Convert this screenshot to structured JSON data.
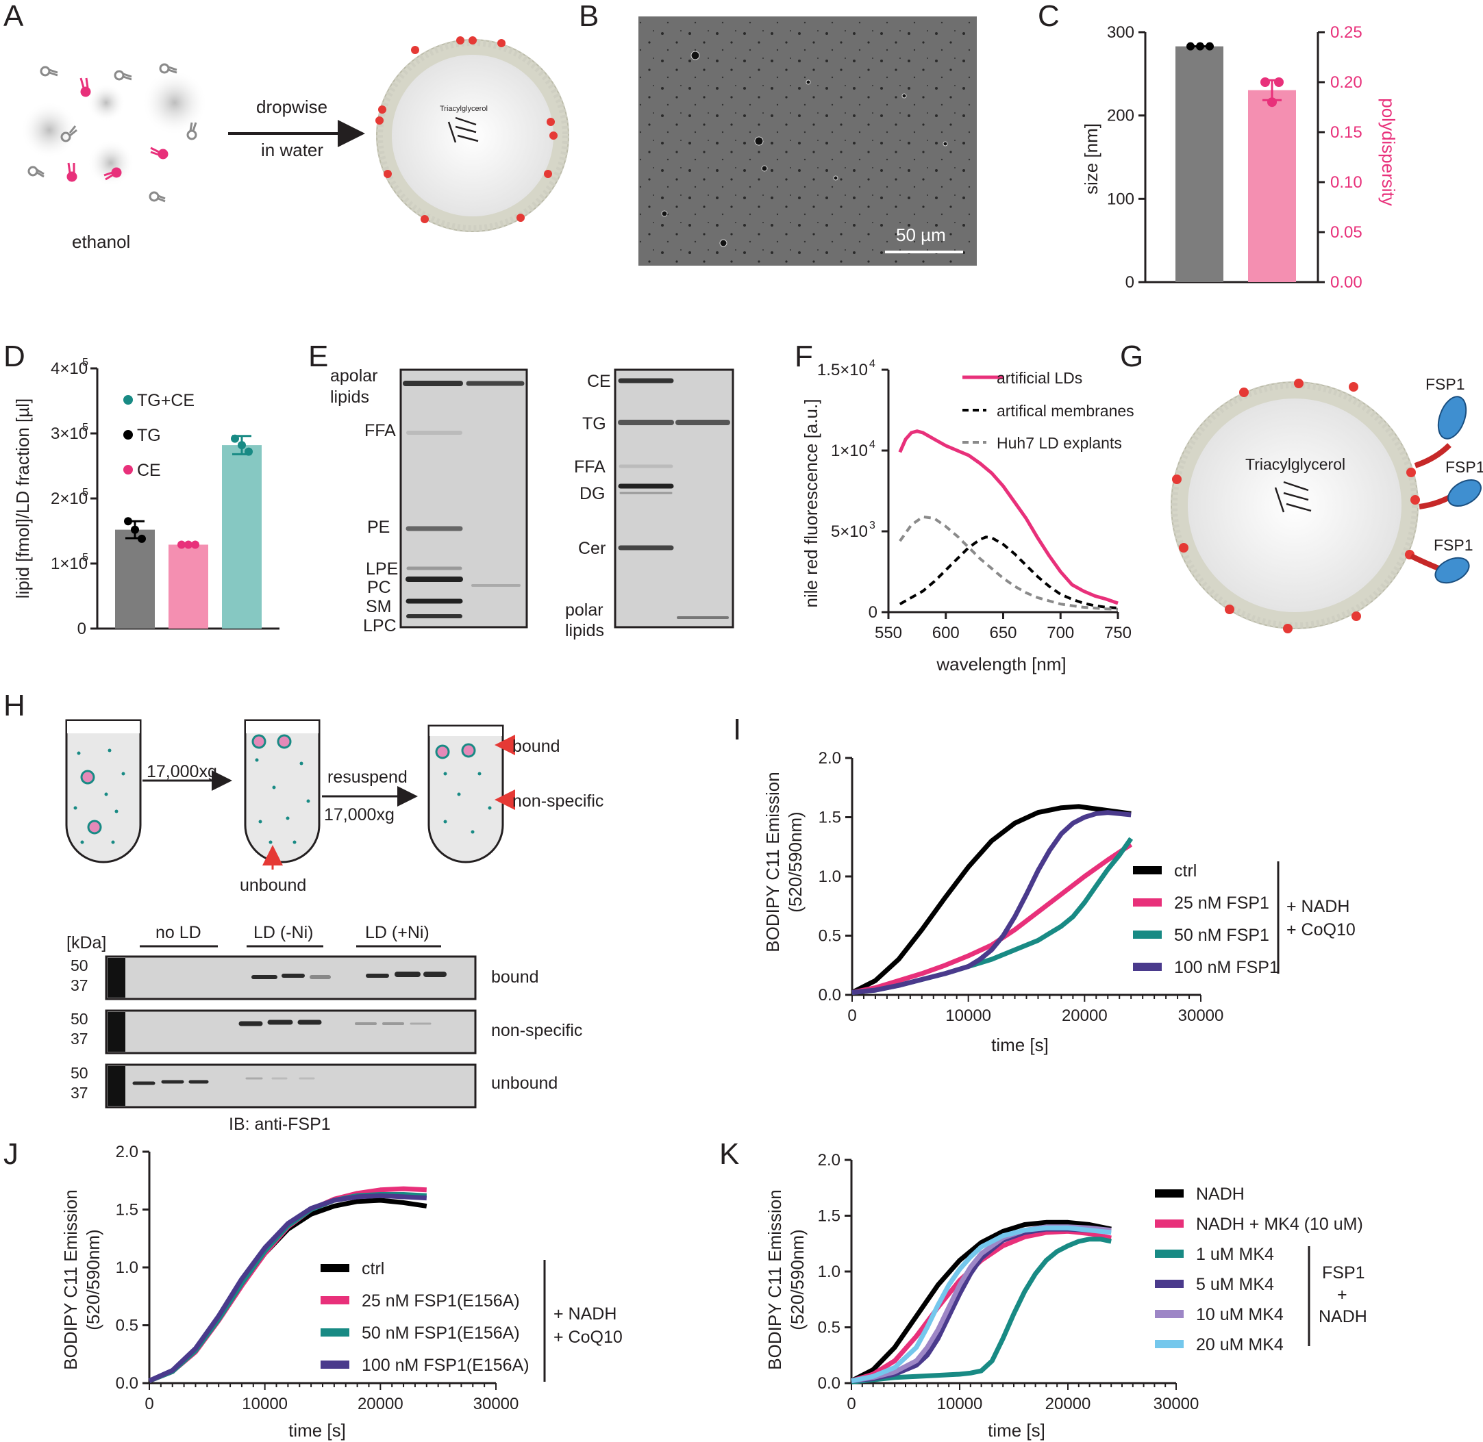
{
  "panels": [
    "A",
    "B",
    "C",
    "D",
    "E",
    "F",
    "G",
    "H",
    "I",
    "J",
    "K"
  ],
  "colors": {
    "pink": "#e8307a",
    "pink_bar": "#f48fb1",
    "gray_bar": "#7d7d7d",
    "teal": "#188a84",
    "teal_bar": "#86c8c2",
    "black": "#000000",
    "purple": "#4a3a8c",
    "lavender": "#9d86c6",
    "skyblue": "#74c7ec",
    "dashgray": "#8a8a8a",
    "ld_fill": "#f2f2f2",
    "headgroup": "#cfcfc2",
    "red": "#e53935",
    "fsp1_blue": "#3f8fd0"
  },
  "A": {
    "label_ethanol": "ethanol",
    "arrow_top": "dropwise",
    "arrow_bottom": "in water",
    "core_text": "Triacylglycerol"
  },
  "B": {
    "scale_bar": "50 µm"
  },
  "C": {
    "chart_data": {
      "type": "bar",
      "categories": [
        "size",
        "polydispersity"
      ],
      "series": [
        {
          "name": "size [nm]",
          "axis": "left",
          "value": 283,
          "points": [
            283,
            283,
            283
          ],
          "color": "#7d7d7d"
        },
        {
          "name": "polydispersity",
          "axis": "right",
          "value": 0.192,
          "points": [
            0.2,
            0.18,
            0.2
          ],
          "error": 0.01,
          "color": "#f48fb1"
        }
      ],
      "ylabel_left": "size [nm]",
      "ylabel_right": "polydispersity",
      "ylim_left": [
        0,
        300
      ],
      "ylim_right": [
        0,
        0.25
      ],
      "yticks_left": [
        "0",
        "100",
        "200",
        "300"
      ],
      "yticks_right": [
        "0.00",
        "0.05",
        "0.10",
        "0.15",
        "0.20",
        "0.25"
      ]
    }
  },
  "D": {
    "chart_data": {
      "type": "bar",
      "categories": [
        "TG",
        "CE",
        "TG+CE"
      ],
      "values": [
        152000,
        129000,
        282000
      ],
      "errors": [
        13000,
        1500,
        14000
      ],
      "points": [
        [
          165000,
          152000,
          138000
        ],
        [
          129000,
          129000,
          129000
        ],
        [
          292000,
          282000,
          272000
        ]
      ],
      "ylabel": "lipid [fmol]/LD fraction [µl]",
      "ylim": [
        0,
        400000
      ],
      "yticks": [
        "0",
        "1×10",
        "2×10",
        "3×10",
        "4×10"
      ],
      "ytick_exp": "5",
      "legend": [
        "TG+CE",
        "TG",
        "CE"
      ],
      "legend_colors": [
        "#188a84",
        "#000000",
        "#e8307a"
      ],
      "bar_colors": [
        "#7d7d7d",
        "#f48fb1",
        "#86c8c2"
      ]
    }
  },
  "E": {
    "left_labels": [
      "apolar",
      "lipids",
      "FFA",
      "PE",
      "LPE",
      "PC",
      "SM",
      "LPC"
    ],
    "right_labels": [
      "CE",
      "TG",
      "FFA",
      "DG",
      "Cer",
      "polar",
      "lipids"
    ]
  },
  "F": {
    "chart_data": {
      "type": "line",
      "xlabel": "wavelength [nm]",
      "ylabel": "nile red fluorescence [a.u.]",
      "xlim": [
        550,
        750
      ],
      "ylim": [
        0,
        15000
      ],
      "xticks": [
        "550",
        "600",
        "650",
        "700",
        "750"
      ],
      "yticks": [
        "0",
        "5×10",
        "1×10",
        "1.5×10"
      ],
      "ytick_exps": [
        "",
        "3",
        "4",
        "4"
      ],
      "series": [
        {
          "name": "artificial LDs",
          "style": "solid",
          "color": "#e8307a",
          "x": [
            560,
            565,
            570,
            575,
            580,
            590,
            600,
            610,
            620,
            630,
            640,
            650,
            660,
            670,
            680,
            690,
            700,
            710,
            720,
            730,
            740,
            750
          ],
          "y": [
            9900,
            10700,
            11100,
            11200,
            11100,
            10700,
            10300,
            10000,
            9700,
            9200,
            8600,
            7800,
            6800,
            5800,
            4600,
            3500,
            2500,
            1700,
            1300,
            1000,
            800,
            550
          ]
        },
        {
          "name": "artifical membranes",
          "style": "dashed",
          "color": "#000000",
          "x": [
            560,
            570,
            580,
            590,
            600,
            610,
            620,
            630,
            635,
            640,
            650,
            660,
            670,
            680,
            690,
            700,
            710,
            720,
            730,
            740,
            750
          ],
          "y": [
            500,
            900,
            1300,
            1900,
            2600,
            3300,
            4000,
            4500,
            4650,
            4600,
            4200,
            3600,
            2900,
            2200,
            1600,
            1100,
            800,
            550,
            400,
            300,
            250
          ]
        },
        {
          "name": "Huh7 LD explants",
          "style": "dashed",
          "color": "#8a8a8a",
          "x": [
            560,
            570,
            580,
            590,
            600,
            610,
            620,
            630,
            640,
            650,
            660,
            670,
            680,
            690,
            700,
            710,
            720,
            730,
            740,
            750
          ],
          "y": [
            4400,
            5400,
            5900,
            5800,
            5300,
            4700,
            4000,
            3300,
            2700,
            2100,
            1600,
            1200,
            900,
            700,
            500,
            400,
            300,
            250,
            200,
            180
          ]
        }
      ]
    }
  },
  "G": {
    "core_text": "Triacylglycerol",
    "fsp1_label": "FSP1"
  },
  "H": {
    "step1": "17,000xg",
    "step2a": "resuspend",
    "step2b": "17,000xg",
    "unbound_arrow": "unbound",
    "bound_arrow": "bound",
    "nonspecific_arrow": "non-specific",
    "kda": "[kDa]",
    "groups": [
      "no LD",
      "LD (-Ni)",
      "LD (+Ni)"
    ],
    "marker_50": "50",
    "marker_37": "37",
    "blots": [
      "bound",
      "non-specific",
      "unbound"
    ],
    "ib": "IB: anti-FSP1"
  },
  "I": {
    "chart_data": {
      "type": "line",
      "xlabel": "time [s]",
      "ylabel": "BODIPY C11 Emission",
      "ylabel2": "(520/590nm)",
      "xlim": [
        0,
        30000
      ],
      "ylim": [
        0,
        2.0
      ],
      "xticks": [
        "0",
        "10000",
        "20000",
        "30000"
      ],
      "yticks": [
        "0.0",
        "0.5",
        "1.0",
        "1.5",
        "2.0"
      ],
      "bracket_text": [
        "+ NADH",
        "+ CoQ10"
      ],
      "series": [
        {
          "name": "ctrl",
          "color": "#000000",
          "x": [
            0,
            2000,
            4000,
            6000,
            8000,
            10000,
            12000,
            14000,
            16000,
            18000,
            19500,
            21000,
            22500,
            24000
          ],
          "y": [
            0.02,
            0.12,
            0.3,
            0.55,
            0.82,
            1.08,
            1.3,
            1.45,
            1.54,
            1.58,
            1.59,
            1.57,
            1.55,
            1.53
          ]
        },
        {
          "name": "25 nM FSP1",
          "color": "#e8307a",
          "x": [
            0,
            2000,
            4000,
            6000,
            8000,
            10000,
            12000,
            14000,
            16000,
            18000,
            20000,
            22000,
            24000
          ],
          "y": [
            0.02,
            0.06,
            0.12,
            0.18,
            0.25,
            0.33,
            0.42,
            0.55,
            0.7,
            0.85,
            1.0,
            1.14,
            1.27
          ]
        },
        {
          "name": "50 nM FSP1",
          "color": "#188a84",
          "x": [
            0,
            2000,
            4000,
            6000,
            8000,
            10000,
            12000,
            14000,
            16000,
            17000,
            18000,
            19000,
            20000,
            21000,
            22000,
            23000,
            24000
          ],
          "y": [
            0.02,
            0.04,
            0.08,
            0.13,
            0.18,
            0.24,
            0.3,
            0.38,
            0.46,
            0.52,
            0.58,
            0.66,
            0.78,
            0.92,
            1.06,
            1.18,
            1.32
          ]
        },
        {
          "name": "100 nM FSP1",
          "color": "#4a3a8c",
          "x": [
            0,
            2000,
            4000,
            6000,
            8000,
            10000,
            11000,
            12000,
            13000,
            14000,
            15000,
            16000,
            17000,
            18000,
            19000,
            20000,
            21000,
            22000,
            23000,
            24000
          ],
          "y": [
            0.02,
            0.04,
            0.08,
            0.13,
            0.18,
            0.24,
            0.3,
            0.38,
            0.5,
            0.66,
            0.85,
            1.05,
            1.22,
            1.36,
            1.45,
            1.5,
            1.53,
            1.54,
            1.53,
            1.52
          ]
        }
      ]
    }
  },
  "J": {
    "chart_data": {
      "type": "line",
      "xlabel": "time [s]",
      "ylabel": "BODIPY C11 Emission",
      "ylabel2": "(520/590nm)",
      "xlim": [
        0,
        30000
      ],
      "ylim": [
        0,
        2.0
      ],
      "xticks": [
        "0",
        "10000",
        "20000",
        "30000"
      ],
      "yticks": [
        "0.0",
        "0.5",
        "1.0",
        "1.5",
        "2.0"
      ],
      "bracket_text": [
        "+ NADH",
        "+ CoQ10"
      ],
      "series": [
        {
          "name": "ctrl",
          "color": "#000000",
          "x": [
            0,
            2000,
            4000,
            6000,
            8000,
            10000,
            12000,
            14000,
            16000,
            18000,
            20000,
            22000,
            24000
          ],
          "y": [
            0.02,
            0.1,
            0.28,
            0.55,
            0.85,
            1.12,
            1.33,
            1.46,
            1.53,
            1.57,
            1.58,
            1.56,
            1.53
          ]
        },
        {
          "name": "25 nM FSP1(E156A)",
          "color": "#e8307a",
          "x": [
            0,
            2000,
            4000,
            6000,
            8000,
            10000,
            12000,
            14000,
            16000,
            18000,
            20000,
            22000,
            24000
          ],
          "y": [
            0.02,
            0.1,
            0.27,
            0.54,
            0.84,
            1.12,
            1.35,
            1.5,
            1.59,
            1.64,
            1.67,
            1.68,
            1.67
          ]
        },
        {
          "name": "50 nM FSP1(E156A)",
          "color": "#188a84",
          "x": [
            0,
            2000,
            4000,
            6000,
            8000,
            10000,
            12000,
            14000,
            16000,
            18000,
            20000,
            22000,
            24000
          ],
          "y": [
            0.02,
            0.1,
            0.28,
            0.55,
            0.86,
            1.14,
            1.36,
            1.5,
            1.58,
            1.62,
            1.63,
            1.63,
            1.62
          ]
        },
        {
          "name": "100 nM FSP1(E156A)",
          "color": "#4a3a8c",
          "x": [
            0,
            2000,
            4000,
            6000,
            8000,
            10000,
            12000,
            14000,
            16000,
            18000,
            20000,
            22000,
            24000
          ],
          "y": [
            0.02,
            0.11,
            0.3,
            0.58,
            0.9,
            1.17,
            1.38,
            1.51,
            1.58,
            1.61,
            1.62,
            1.61,
            1.6
          ]
        }
      ]
    }
  },
  "K": {
    "chart_data": {
      "type": "line",
      "xlabel": "time [s]",
      "ylabel": "BODIPY C11 Emission",
      "ylabel2": "(520/590nm)",
      "xlim": [
        0,
        30000
      ],
      "ylim": [
        0,
        2.0
      ],
      "xticks": [
        "0",
        "10000",
        "20000",
        "30000"
      ],
      "yticks": [
        "0.0",
        "0.5",
        "1.0",
        "1.5",
        "2.0"
      ],
      "bracket_text": [
        "FSP1",
        "+",
        "NADH"
      ],
      "series": [
        {
          "name": "NADH",
          "color": "#000000",
          "x": [
            0,
            2000,
            4000,
            6000,
            8000,
            10000,
            12000,
            14000,
            16000,
            18000,
            20000,
            22000,
            24000
          ],
          "y": [
            0.02,
            0.12,
            0.32,
            0.6,
            0.88,
            1.1,
            1.26,
            1.36,
            1.42,
            1.44,
            1.44,
            1.42,
            1.38
          ]
        },
        {
          "name": "NADH + MK4 (10 uM)",
          "color": "#e8307a",
          "x": [
            0,
            2000,
            4000,
            6000,
            8000,
            10000,
            12000,
            14000,
            16000,
            18000,
            20000,
            22000,
            24000
          ],
          "y": [
            0.02,
            0.08,
            0.2,
            0.42,
            0.68,
            0.92,
            1.1,
            1.23,
            1.31,
            1.35,
            1.36,
            1.34,
            1.3
          ]
        },
        {
          "name": "1 uM MK4",
          "color": "#188a84",
          "x": [
            0,
            2000,
            4000,
            6000,
            8000,
            10000,
            11000,
            12000,
            13000,
            14000,
            15000,
            16000,
            17000,
            18000,
            19000,
            20000,
            21000,
            22000,
            23000,
            24000
          ],
          "y": [
            0.01,
            0.03,
            0.05,
            0.06,
            0.07,
            0.08,
            0.09,
            0.11,
            0.2,
            0.4,
            0.62,
            0.82,
            0.98,
            1.1,
            1.18,
            1.23,
            1.27,
            1.29,
            1.29,
            1.27
          ]
        },
        {
          "name": "5 uM MK4",
          "color": "#4a3a8c",
          "x": [
            0,
            2000,
            4000,
            6000,
            7000,
            8000,
            9000,
            10000,
            11000,
            12000,
            14000,
            16000,
            18000,
            20000,
            22000,
            24000
          ],
          "y": [
            0.02,
            0.04,
            0.08,
            0.16,
            0.25,
            0.4,
            0.6,
            0.8,
            0.98,
            1.12,
            1.28,
            1.35,
            1.38,
            1.38,
            1.37,
            1.36
          ]
        },
        {
          "name": "10 uM MK4",
          "color": "#9d86c6",
          "x": [
            0,
            2000,
            4000,
            6000,
            7000,
            8000,
            9000,
            10000,
            11000,
            12000,
            14000,
            16000,
            18000,
            20000,
            22000,
            24000
          ],
          "y": [
            0.02,
            0.05,
            0.1,
            0.2,
            0.32,
            0.48,
            0.68,
            0.88,
            1.04,
            1.16,
            1.3,
            1.37,
            1.4,
            1.4,
            1.39,
            1.37
          ]
        },
        {
          "name": "20 uM MK4",
          "color": "#74c7ec",
          "x": [
            0,
            2000,
            4000,
            6000,
            7000,
            8000,
            9000,
            10000,
            11000,
            12000,
            14000,
            16000,
            18000,
            20000,
            22000,
            24000
          ],
          "y": [
            0.02,
            0.06,
            0.14,
            0.32,
            0.5,
            0.7,
            0.88,
            1.02,
            1.13,
            1.22,
            1.32,
            1.37,
            1.39,
            1.39,
            1.37,
            1.35
          ]
        }
      ]
    }
  }
}
